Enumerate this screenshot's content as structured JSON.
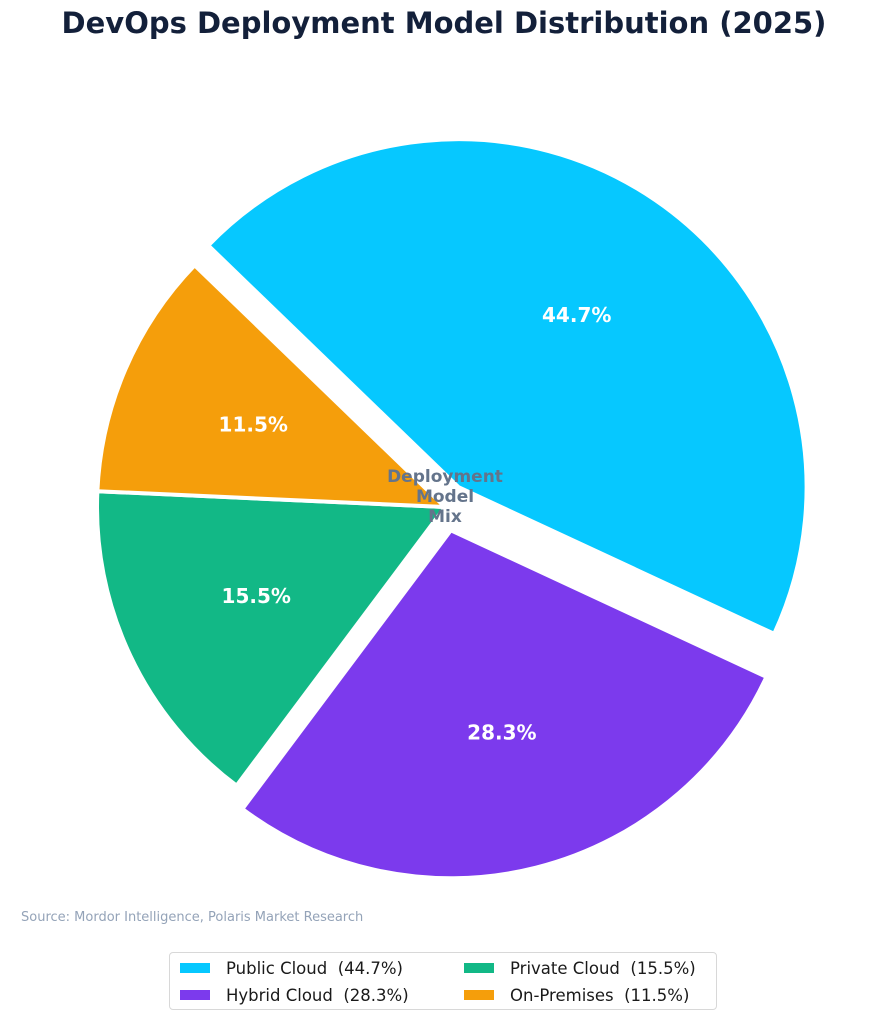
{
  "chart_data": {
    "type": "pie",
    "title": "DevOps Deployment Model Distribution (2025)",
    "center_label": "Deployment\nModel\nMix",
    "source": "Source: Mordor Intelligence, Polaris Market Research",
    "legend_placement": "bottom-center",
    "slices": [
      {
        "label": "Public Cloud",
        "value": 44.7,
        "display": "44.7%",
        "legend": "Public Cloud  (44.7%)",
        "color": "#06c8ff"
      },
      {
        "label": "Hybrid Cloud",
        "value": 28.3,
        "display": "28.3%",
        "legend": "Hybrid Cloud  (28.3%)",
        "color": "#7c3aed"
      },
      {
        "label": "Private Cloud",
        "value": 15.5,
        "display": "15.5%",
        "legend": "Private Cloud  (15.5%)",
        "color": "#12b886"
      },
      {
        "label": "On-Premises",
        "value": 11.5,
        "display": "11.5%",
        "legend": "On-Premises  (11.5%)",
        "color": "#f59e0b"
      }
    ]
  }
}
